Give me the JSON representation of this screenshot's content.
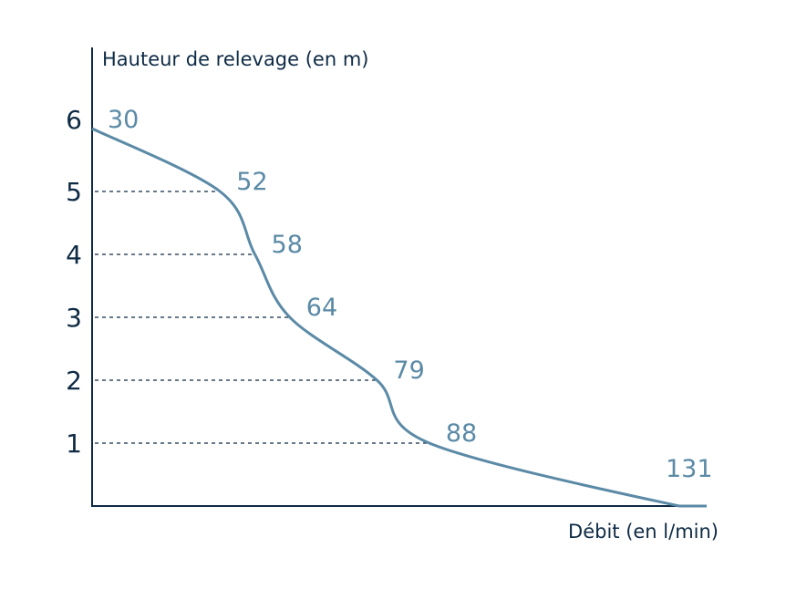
{
  "chart_data": {
    "type": "line",
    "title": "",
    "xlabel": "Débit (en l/min)",
    "ylabel": "Hauteur de relevage (en m)",
    "ylim": [
      0,
      6
    ],
    "xlim": [
      30,
      131
    ],
    "yticks": [
      "1",
      "2",
      "3",
      "4",
      "5",
      "6"
    ],
    "grid": false,
    "points": [
      {
        "x": 30,
        "y": 6,
        "label": "30"
      },
      {
        "x": 52,
        "y": 5,
        "label": "52"
      },
      {
        "x": 58,
        "y": 4,
        "label": "58"
      },
      {
        "x": 64,
        "y": 3,
        "label": "64"
      },
      {
        "x": 79,
        "y": 2,
        "label": "79"
      },
      {
        "x": 88,
        "y": 1,
        "label": "88"
      },
      {
        "x": 131,
        "y": 0,
        "label": "131"
      }
    ],
    "guide_lines": "dashed horizontal lines from y-axis to the curve at heights 1–5",
    "colors": {
      "axis": "#0e2a44",
      "curve": "#5b8aa6"
    }
  }
}
